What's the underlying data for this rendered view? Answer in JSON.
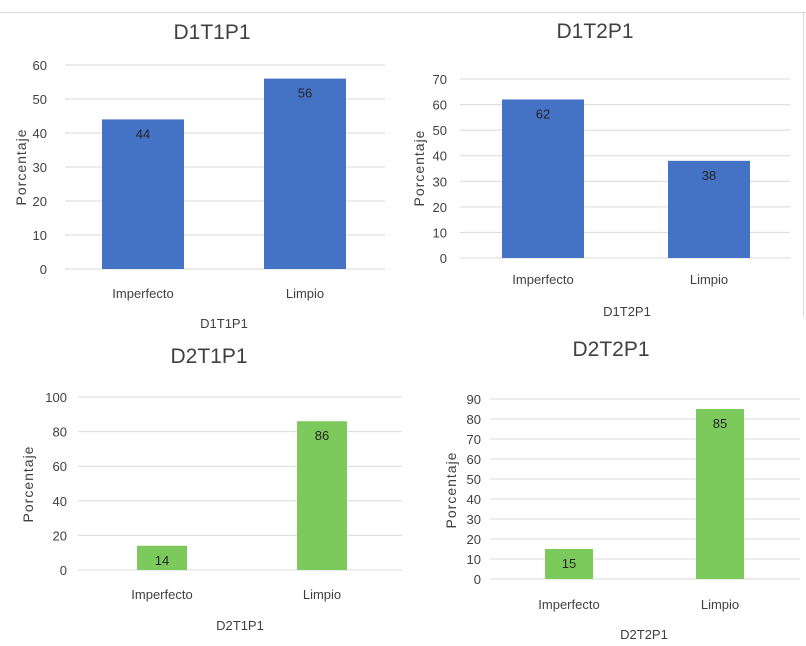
{
  "chart_data": [
    {
      "type": "bar",
      "title": "D1T1P1",
      "xlabel": "D1T1P1",
      "ylabel": "Porcentaje",
      "categories": [
        "Imperfecto",
        "Limpio"
      ],
      "values": [
        44,
        56
      ],
      "ylim": [
        0,
        60
      ],
      "yticks": [
        0,
        10,
        20,
        30,
        40,
        50,
        60
      ],
      "color": "#4472c4",
      "grid": true
    },
    {
      "type": "bar",
      "title": "D1T2P1",
      "xlabel": "D1T2P1",
      "ylabel": "Porcentaje",
      "categories": [
        "Imperfecto",
        "Limpio"
      ],
      "values": [
        62,
        38
      ],
      "ylim": [
        0,
        70
      ],
      "yticks": [
        0,
        10,
        20,
        30,
        40,
        50,
        60,
        70
      ],
      "color": "#4472c4",
      "grid": true
    },
    {
      "type": "bar",
      "title": "D2T1P1",
      "xlabel": "D2T1P1",
      "ylabel": "Porcentaje",
      "categories": [
        "Imperfecto",
        "Limpio"
      ],
      "values": [
        14,
        86
      ],
      "ylim": [
        0,
        100
      ],
      "yticks": [
        0,
        20,
        40,
        60,
        80,
        100
      ],
      "color": "#7cc95c",
      "grid": true
    },
    {
      "type": "bar",
      "title": "D2T2P1",
      "xlabel": "D2T2P1",
      "ylabel": "Porcentaje",
      "categories": [
        "Imperfecto",
        "Limpio"
      ],
      "values": [
        15,
        85
      ],
      "ylim": [
        0,
        90
      ],
      "yticks": [
        0,
        10,
        20,
        30,
        40,
        50,
        60,
        70,
        80,
        90
      ],
      "color": "#7cc95c",
      "grid": true
    }
  ]
}
